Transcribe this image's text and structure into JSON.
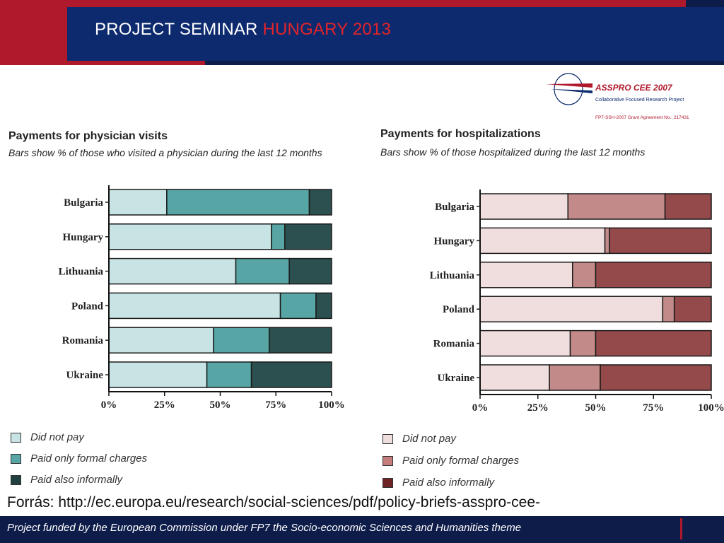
{
  "header": {
    "title_main": "PROJECT SEMINAR ",
    "title_highlight": "HUNGARY 2013"
  },
  "logo": {
    "name": "ASSPRO CEE 2007",
    "subtitle": "Collaborative Focused Research Project",
    "grant": "FP7-SSH-2007 Grant Agreement No.: 217431"
  },
  "chart_data": [
    {
      "type": "bar",
      "orientation": "horizontal",
      "stacked": true,
      "title": "Payments for physician visits",
      "subtitle": "Bars show % of those who visited a physician during the last 12 months",
      "categories": [
        "Bulgaria",
        "Hungary",
        "Lithuania",
        "Poland",
        "Romania",
        "Ukraine"
      ],
      "series": [
        {
          "name": "Did not pay",
          "color": "#c7e3e3",
          "values": [
            26,
            73,
            57,
            77,
            47,
            44
          ]
        },
        {
          "name": "Paid only formal charges",
          "color": "#58a5a5",
          "values": [
            64,
            6,
            24,
            16,
            25,
            20
          ]
        },
        {
          "name": "Paid also informally",
          "color": "#2b504f",
          "values": [
            10,
            21,
            19,
            7,
            28,
            36
          ]
        }
      ],
      "xlim": [
        0,
        100
      ],
      "xticks": [
        "0%",
        "25%",
        "50%",
        "75%",
        "100%"
      ],
      "legend": "bottom-left"
    },
    {
      "type": "bar",
      "orientation": "horizontal",
      "stacked": true,
      "title": "Payments for hospitalizations",
      "subtitle": "Bars show % of those hospitalized during the last 12 months",
      "categories": [
        "Bulgaria",
        "Hungary",
        "Lithuania",
        "Poland",
        "Romania",
        "Ukraine"
      ],
      "series": [
        {
          "name": "Did not pay",
          "color": "#f0dede",
          "values": [
            38,
            54,
            40,
            79,
            39,
            30
          ]
        },
        {
          "name": "Paid only formal charges",
          "color": "#c28a88",
          "values": [
            42,
            2,
            10,
            5,
            11,
            22
          ]
        },
        {
          "name": "Paid also informally",
          "color": "#944a4a",
          "values": [
            20,
            44,
            50,
            16,
            50,
            48
          ]
        }
      ],
      "xlim": [
        0,
        100
      ],
      "xticks": [
        "0%",
        "25%",
        "50%",
        "75%",
        "100%"
      ],
      "legend": "bottom-left"
    }
  ],
  "legend_left": {
    "items": [
      {
        "label": "Did not pay",
        "color": "#c7e3e3"
      },
      {
        "label": "Paid only formal charges",
        "color": "#58a5a5"
      },
      {
        "label": "Paid also informally",
        "color": "#20403f"
      }
    ]
  },
  "legend_right": {
    "items": [
      {
        "label": "Did not pay",
        "color": "#f0dede"
      },
      {
        "label": "Paid only formal charges",
        "color": "#c47c7c"
      },
      {
        "label": "Paid also informally",
        "color": "#6e2326"
      }
    ]
  },
  "source": "Forrás: http://ec.europa.eu/research/social-sciences/pdf/policy-briefs-asspro-cee-",
  "footer": "Project funded by the European Commission under FP7 the Socio-economic Sciences and Humanities theme"
}
